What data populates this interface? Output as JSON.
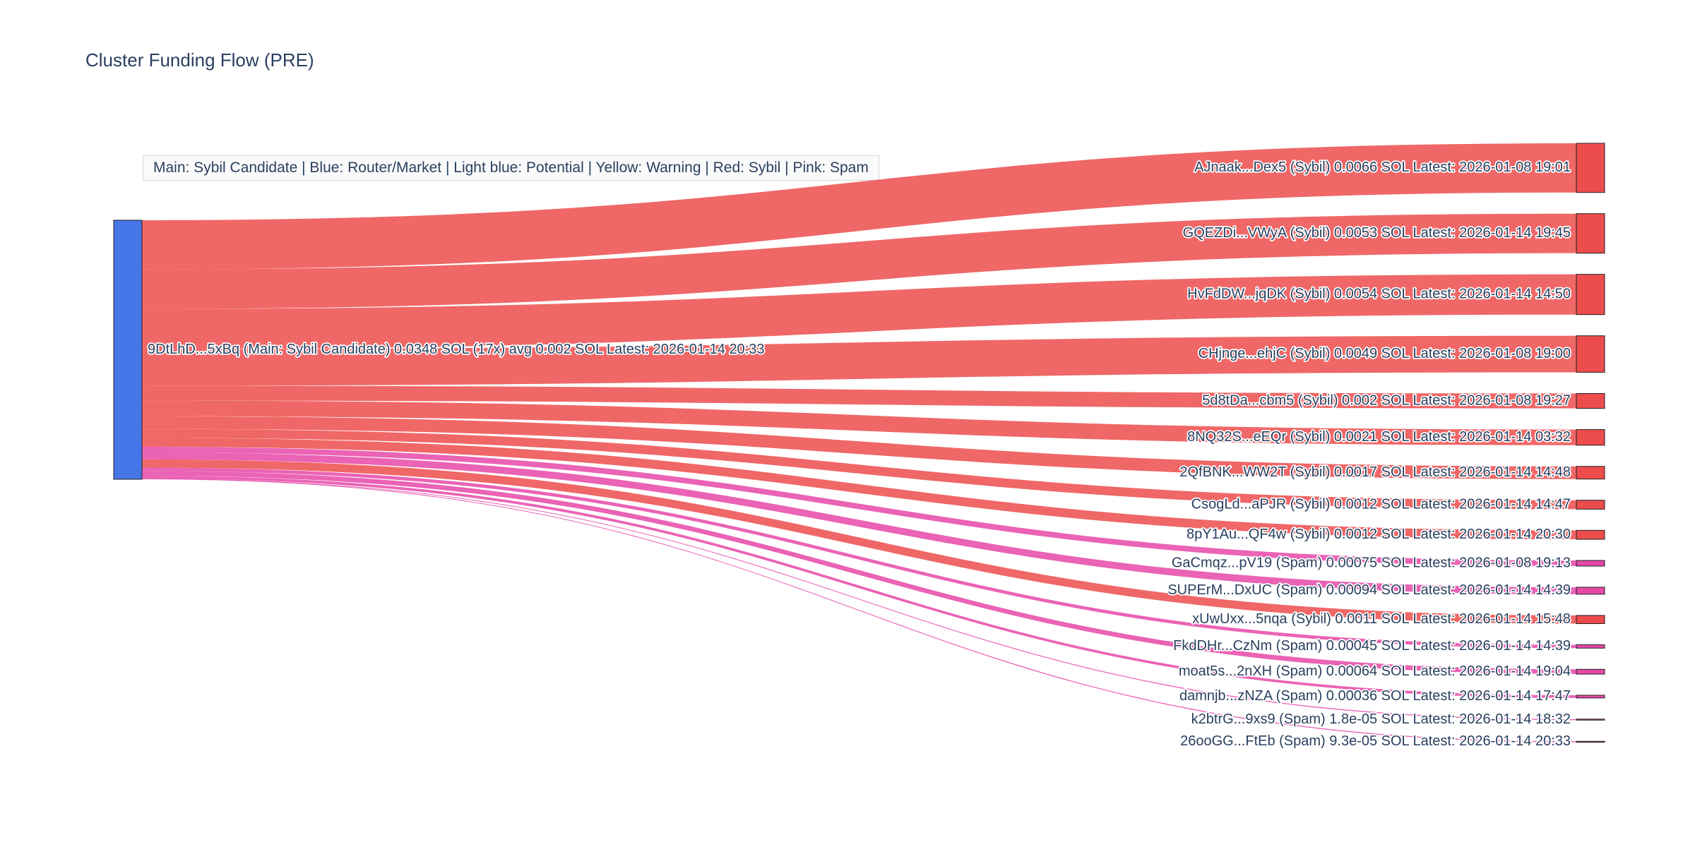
{
  "title": "Cluster Funding Flow (PRE)",
  "legend": "Main: Sybil Candidate  |  Blue: Router/Market | Light blue: Potential | Yellow: Warning | Red: Sybil | Pink: Spam",
  "colors": {
    "source_node": "#4575e6",
    "sybil": "#ed4c4c",
    "spam": "#e648a8",
    "node_border": "#222222",
    "text": "#2a3f5f"
  },
  "chart_data": {
    "type": "sankey",
    "units": "SOL",
    "source_node": {
      "label": "9DtLhD...5xBq (Main: Sybil Candidate) 0.0348 SOL (17x) avg 0.002 SOL Latest: 2026-01-14 20:33",
      "total_sol": 0.0348,
      "transfer_count": "17x",
      "avg_sol": 0.002,
      "latest": "2026-01-14 20:33",
      "category": "main"
    },
    "targets": [
      {
        "label": "AJnaak...Dex5 (Sybil) 0.0066 SOL Latest: 2026-01-08 19:01",
        "value": 0.0066,
        "category": "sybil",
        "latest": "2026-01-08 19:01"
      },
      {
        "label": "GQEZDi...VWyA (Sybil) 0.0053 SOL Latest: 2026-01-14 19:45",
        "value": 0.0053,
        "category": "sybil",
        "latest": "2026-01-14 19:45"
      },
      {
        "label": "HvFdDW...jqDK (Sybil) 0.0054 SOL Latest: 2026-01-14 14:50",
        "value": 0.0054,
        "category": "sybil",
        "latest": "2026-01-14 14:50"
      },
      {
        "label": "CHjnge...ehjC (Sybil) 0.0049 SOL Latest: 2026-01-08 19:00",
        "value": 0.0049,
        "category": "sybil",
        "latest": "2026-01-08 19:00"
      },
      {
        "label": "5d8tDa...cbm5 (Sybil) 0.002 SOL Latest: 2026-01-08 19:27",
        "value": 0.002,
        "category": "sybil",
        "latest": "2026-01-08 19:27"
      },
      {
        "label": "8NQ32S...eEQr (Sybil) 0.0021 SOL Latest: 2026-01-14 03:32",
        "value": 0.0021,
        "category": "sybil",
        "latest": "2026-01-14 03:32"
      },
      {
        "label": "2QfBNK...WW2T (Sybil) 0.0017 SOL Latest: 2026-01-14 14:48",
        "value": 0.0017,
        "category": "sybil",
        "latest": "2026-01-14 14:48"
      },
      {
        "label": "CsogLd...aPJR (Sybil) 0.0012 SOL Latest: 2026-01-14 14:47",
        "value": 0.0012,
        "category": "sybil",
        "latest": "2026-01-14 14:47"
      },
      {
        "label": "8pY1Au...QF4w (Sybil) 0.0012 SOL Latest: 2026-01-14 20:30",
        "value": 0.0012,
        "category": "sybil",
        "latest": "2026-01-14 20:30"
      },
      {
        "label": "GaCmqz...pV19 (Spam) 0.00075 SOL Latest: 2026-01-08 19:13",
        "value": 0.00075,
        "category": "spam",
        "latest": "2026-01-08 19:13"
      },
      {
        "label": "SUPErM...DxUC (Spam) 0.00094 SOL Latest: 2026-01-14 14:39",
        "value": 0.00094,
        "category": "spam",
        "latest": "2026-01-14 14:39"
      },
      {
        "label": "xUwUxx...5nqa (Sybil) 0.0011 SOL Latest: 2026-01-14 15:48",
        "value": 0.0011,
        "category": "sybil",
        "latest": "2026-01-14 15:48"
      },
      {
        "label": "FkdDHr...CzNm (Spam) 0.00045 SOL Latest: 2026-01-14 14:39",
        "value": 0.00045,
        "category": "spam",
        "latest": "2026-01-14 14:39"
      },
      {
        "label": "moat5s...2nXH (Spam) 0.00064 SOL Latest: 2026-01-14 19:04",
        "value": 0.00064,
        "category": "spam",
        "latest": "2026-01-14 19:04"
      },
      {
        "label": "damnjb...zNZA (Spam) 0.00036 SOL Latest: 2026-01-14 17:47",
        "value": 0.00036,
        "category": "spam",
        "latest": "2026-01-14 17:47"
      },
      {
        "label": "k2btrG...9xs9 (Spam) 1.8e-05 SOL Latest: 2026-01-14 18:32",
        "value": 1.8e-05,
        "category": "spam",
        "latest": "2026-01-14 18:32"
      },
      {
        "label": "26ooGG...FtEb (Spam) 9.3e-05 SOL Latest: 2026-01-14 20:33",
        "value": 9.3e-05,
        "category": "spam",
        "latest": "2026-01-14 20:33"
      }
    ]
  }
}
